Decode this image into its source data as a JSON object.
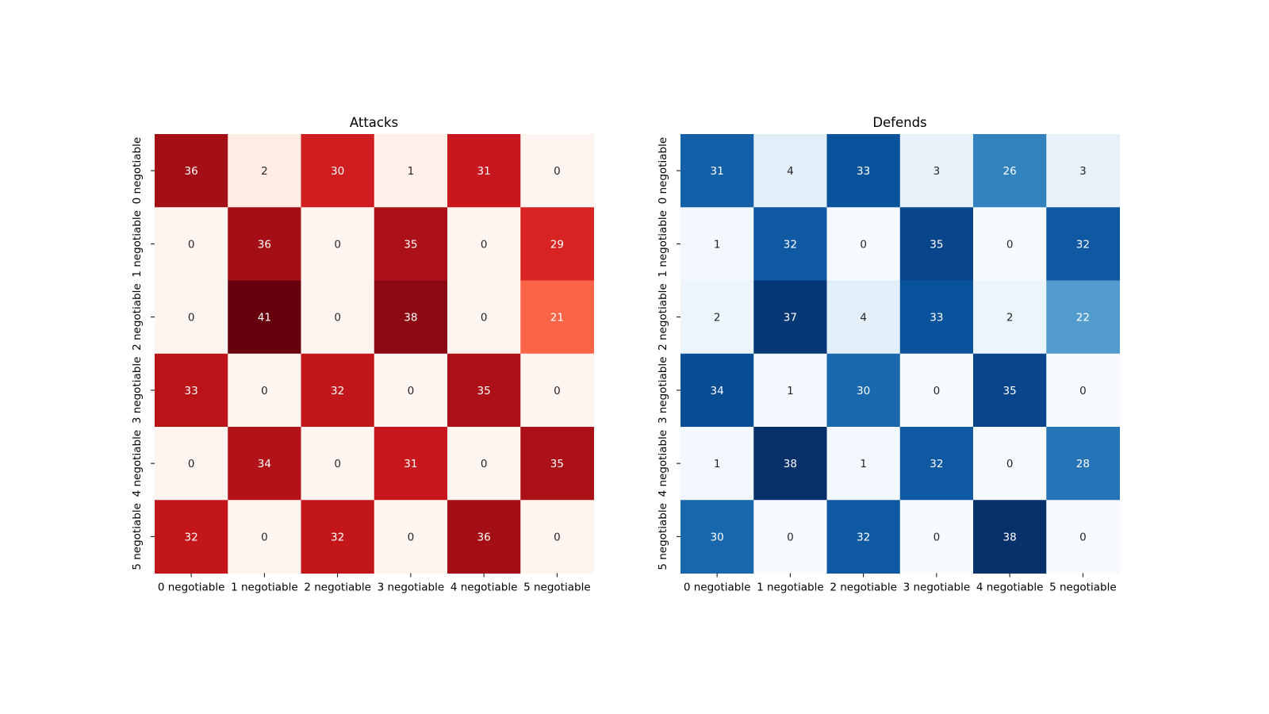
{
  "chart_data": [
    {
      "type": "heatmap",
      "title": "Attacks",
      "colormap": "Reds",
      "colormap_colors": [
        "#fff5f0",
        "#fee0d2",
        "#fcbba1",
        "#fc9272",
        "#fb6a4a",
        "#ef3b2c",
        "#cb181d",
        "#a50f15",
        "#67000d"
      ],
      "row_labels": [
        "0 negotiable",
        "1 negotiable",
        "2 negotiable",
        "3 negotiable",
        "4 negotiable",
        "5 negotiable"
      ],
      "col_labels": [
        "0 negotiable",
        "1 negotiable",
        "2 negotiable",
        "3 negotiable",
        "4 negotiable",
        "5 negotiable"
      ],
      "values": [
        [
          36,
          2,
          30,
          1,
          31,
          0
        ],
        [
          0,
          36,
          0,
          35,
          0,
          29
        ],
        [
          0,
          41,
          0,
          38,
          0,
          21
        ],
        [
          33,
          0,
          32,
          0,
          35,
          0
        ],
        [
          0,
          34,
          0,
          31,
          0,
          35
        ],
        [
          32,
          0,
          32,
          0,
          36,
          0
        ]
      ],
      "vmin": 0,
      "vmax": 41,
      "annotations": true
    },
    {
      "type": "heatmap",
      "title": "Defends",
      "colormap": "Blues",
      "colormap_colors": [
        "#f7fbff",
        "#deebf7",
        "#c6dbef",
        "#9ecae1",
        "#6baed6",
        "#4292c6",
        "#2171b5",
        "#08519c",
        "#08306b"
      ],
      "row_labels": [
        "0 negotiable",
        "1 negotiable",
        "2 negotiable",
        "3 negotiable",
        "4 negotiable",
        "5 negotiable"
      ],
      "col_labels": [
        "0 negotiable",
        "1 negotiable",
        "2 negotiable",
        "3 negotiable",
        "4 negotiable",
        "5 negotiable"
      ],
      "values": [
        [
          31,
          4,
          33,
          3,
          26,
          3
        ],
        [
          1,
          32,
          0,
          35,
          0,
          32
        ],
        [
          2,
          37,
          4,
          33,
          2,
          22
        ],
        [
          34,
          1,
          30,
          0,
          35,
          0
        ],
        [
          1,
          38,
          1,
          32,
          0,
          28
        ],
        [
          30,
          0,
          32,
          0,
          38,
          0
        ]
      ],
      "vmin": 0,
      "vmax": 38,
      "annotations": true
    }
  ]
}
